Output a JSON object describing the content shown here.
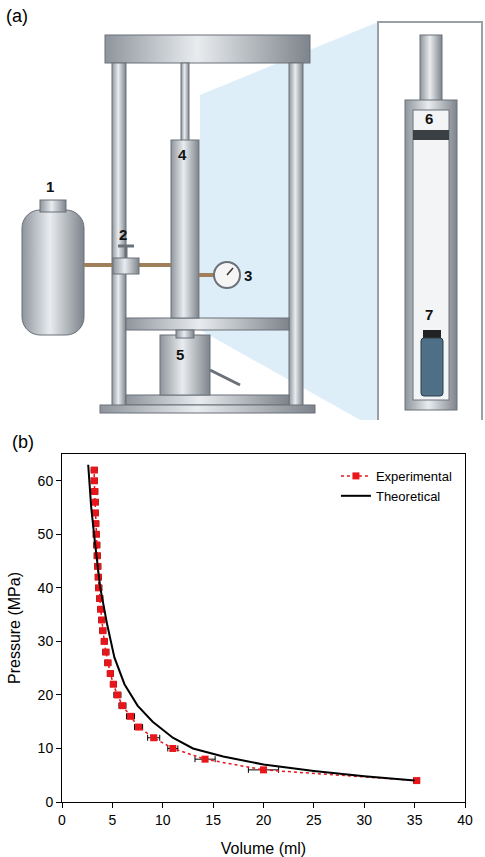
{
  "panel_a": {
    "label": "(a)",
    "callouts": [
      "1",
      "2",
      "3",
      "4",
      "5",
      "6",
      "7"
    ]
  },
  "chart_data": {
    "type": "scatter",
    "panel_label": "(b)",
    "x_label": "Volume (ml)",
    "y_label": "Pressure (MPa)",
    "xlim": [
      0,
      40
    ],
    "xticks": [
      0,
      5,
      10,
      15,
      20,
      25,
      30,
      35,
      40
    ],
    "ylim": [
      0,
      65
    ],
    "yticks": [
      0,
      10,
      20,
      30,
      40,
      50,
      60
    ],
    "legend": "top right",
    "grid": false,
    "series": [
      {
        "name": "Experimental",
        "color": "#e8161b",
        "marker": "square",
        "line_style": "dot",
        "x": [
          35.2,
          20,
          14.2,
          11,
          9.1,
          7.6,
          6.8,
          6.0,
          5.5,
          5.1,
          4.8,
          4.55,
          4.35,
          4.2,
          4.05,
          3.95,
          3.85,
          3.75,
          3.65,
          3.6,
          3.55,
          3.5,
          3.45,
          3.4,
          3.35,
          3.3,
          3.3,
          3.25,
          3.2,
          3.2
        ],
        "values": [
          4,
          6,
          8,
          10,
          12,
          14,
          16,
          18,
          20,
          22,
          24,
          26,
          28,
          30,
          32,
          34,
          36,
          38,
          40,
          42,
          44,
          46,
          48,
          50,
          52,
          54,
          56,
          58,
          60,
          62
        ],
        "x_error": [
          0.3,
          1.5,
          1.0,
          0.5,
          0.6,
          0.4,
          0.4,
          0.35,
          0.35,
          0.3,
          0.3,
          0.3,
          0.3,
          0.3,
          0.3,
          0.3,
          0.3,
          0.3,
          0.3,
          0.3,
          0.3,
          0.3,
          0.3,
          0.3,
          0.3,
          0.3,
          0.3,
          0.3,
          0.3,
          0.3
        ]
      },
      {
        "name": "Theoretical",
        "color": "#000000",
        "marker": "none",
        "line_style": "solid",
        "x": [
          2.6,
          2.9,
          3.3,
          3.8,
          4.5,
          5.2,
          6.2,
          7.5,
          9,
          11,
          13,
          16,
          20,
          25,
          30,
          35
        ],
        "values": [
          63,
          55,
          48,
          40,
          33,
          27,
          22,
          18,
          15,
          12,
          10,
          8.5,
          7,
          5.8,
          4.8,
          4
        ]
      }
    ]
  }
}
